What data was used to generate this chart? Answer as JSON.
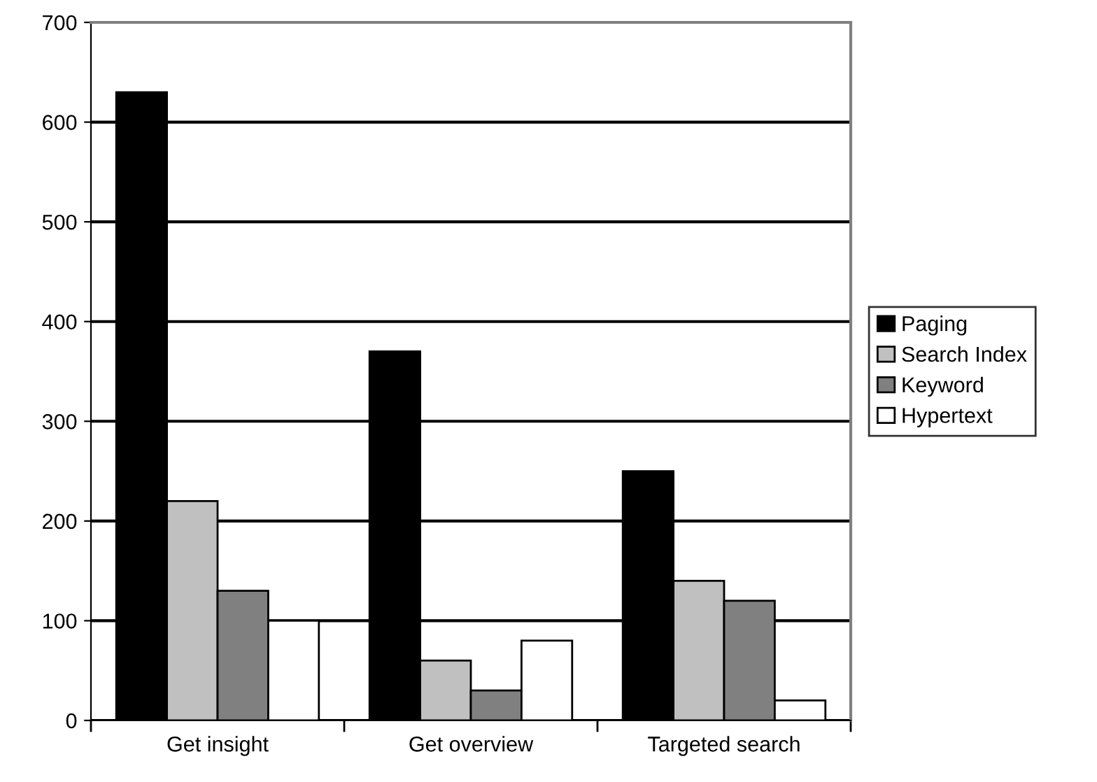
{
  "chart_data": {
    "type": "bar",
    "categories": [
      "Get insight",
      "Get overview",
      "Targeted search"
    ],
    "series": [
      {
        "name": "Paging",
        "color": "#000000",
        "values": [
          630,
          370,
          250
        ]
      },
      {
        "name": "Search Index",
        "color": "#c0c0c0",
        "values": [
          220,
          60,
          140
        ]
      },
      {
        "name": "Keyword",
        "color": "#808080",
        "values": [
          130,
          30,
          120
        ]
      },
      {
        "name": "Hypertext",
        "color": "#ffffff",
        "values": [
          100,
          80,
          20
        ]
      }
    ],
    "ylim": [
      0,
      700
    ],
    "yticks": [
      0,
      100,
      200,
      300,
      400,
      500,
      600,
      700
    ],
    "grid": "y",
    "legend": "right"
  }
}
